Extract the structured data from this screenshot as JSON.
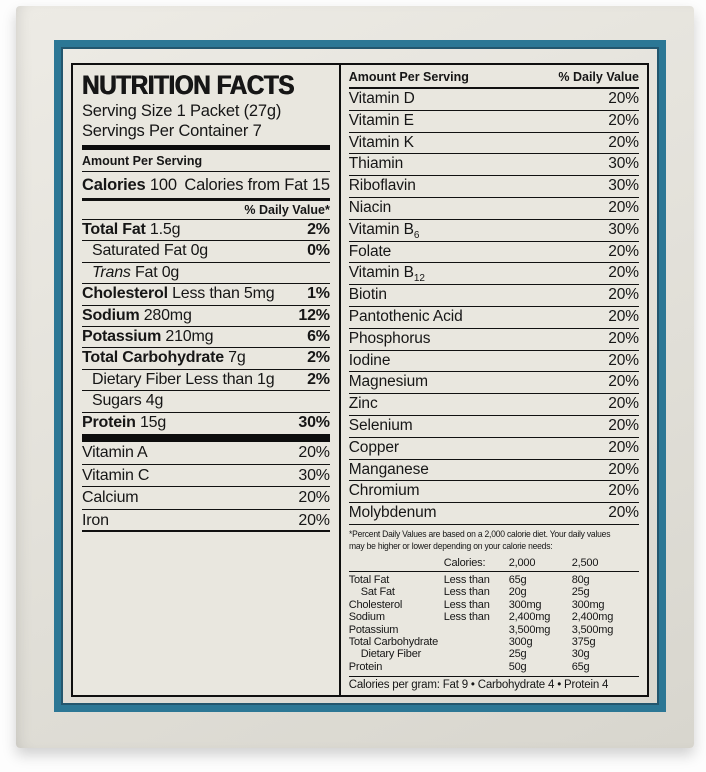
{
  "colors": {
    "teal_border": "#2c7795",
    "teal_inner_line": "#23566e",
    "label_background": "#e9e7df",
    "box_background": "#e0ded6",
    "text": "#161616"
  },
  "nutrition_label": {
    "title": "NUTRITION FACTS",
    "serving_size": "Serving Size 1 Packet (27g)",
    "servings_per_container": "Servings Per Container 7",
    "amount_per_serving": "Amount Per Serving",
    "calories_label": "Calories",
    "calories_value": "100",
    "calories_from_fat": "Calories from Fat 15",
    "daily_value_header": "% Daily Value*",
    "nutrients": [
      {
        "name": "Total Fat",
        "style": "bold",
        "amount": "1.5g",
        "dv": "2%"
      },
      {
        "name": "Saturated Fat",
        "style": "plain",
        "amount": "0g",
        "dv": "0%",
        "indent": 1
      },
      {
        "name": "Trans",
        "style": "italic",
        "amount": "Fat 0g",
        "dv": "",
        "indent": 1
      },
      {
        "name": "Cholesterol",
        "style": "bold",
        "amount": "Less than 5mg",
        "dv": "1%"
      },
      {
        "name": "Sodium",
        "style": "bold",
        "amount": "280mg",
        "dv": "12%"
      },
      {
        "name": "Potassium",
        "style": "bold",
        "amount": "210mg",
        "dv": "6%"
      },
      {
        "name": "Total Carbohydrate",
        "style": "bold",
        "amount": "7g",
        "dv": "2%"
      },
      {
        "name": "Dietary Fiber",
        "style": "plain",
        "amount": "Less than 1g",
        "dv": "2%",
        "indent": 1
      },
      {
        "name": "Sugars",
        "style": "plain",
        "amount": "4g",
        "dv": "",
        "indent": 1
      },
      {
        "name": "Protein",
        "style": "bold",
        "amount": "15g",
        "dv": "30%"
      }
    ],
    "vitamins_left": [
      {
        "name": "Vitamin A",
        "dv": "20%"
      },
      {
        "name": "Vitamin C",
        "dv": "30%"
      },
      {
        "name": "Calcium",
        "dv": "20%"
      },
      {
        "name": "Iron",
        "dv": "20%"
      }
    ],
    "right_header_left": "Amount Per Serving",
    "right_header_right": "% Daily Value",
    "micronutrients": [
      {
        "name": "Vitamin D",
        "dv": "20%"
      },
      {
        "name": "Vitamin E",
        "dv": "20%"
      },
      {
        "name": "Vitamin K",
        "dv": "20%"
      },
      {
        "name": "Thiamin",
        "dv": "30%"
      },
      {
        "name": "Riboflavin",
        "dv": "30%"
      },
      {
        "name": "Niacin",
        "dv": "20%"
      },
      {
        "name": "Vitamin B",
        "sub": "6",
        "dv": "30%"
      },
      {
        "name": "Folate",
        "dv": "20%"
      },
      {
        "name": "Vitamin B",
        "sub": "12",
        "dv": "20%"
      },
      {
        "name": "Biotin",
        "dv": "20%"
      },
      {
        "name": "Pantothenic Acid",
        "dv": "20%"
      },
      {
        "name": "Phosphorus",
        "dv": "20%"
      },
      {
        "name": "Iodine",
        "dv": "20%"
      },
      {
        "name": "Magnesium",
        "dv": "20%"
      },
      {
        "name": "Zinc",
        "dv": "20%"
      },
      {
        "name": "Selenium",
        "dv": "20%"
      },
      {
        "name": "Copper",
        "dv": "20%"
      },
      {
        "name": "Manganese",
        "dv": "20%"
      },
      {
        "name": "Chromium",
        "dv": "20%"
      },
      {
        "name": "Molybdenum",
        "dv": "20%"
      }
    ],
    "footnote_lines": [
      "*Percent Daily Values are based on a 2,000 calorie diet. Your daily values",
      "may be higher or lower depending on your calorie needs:"
    ],
    "dv_table": {
      "calories_header": "Calories:",
      "col_2000": "2,000",
      "col_2500": "2,500",
      "rows": [
        {
          "name": "Total Fat",
          "qual": "Less than",
          "v2000": "65g",
          "v2500": "80g"
        },
        {
          "name": "Sat Fat",
          "qual": "Less than",
          "v2000": "20g",
          "v2500": "25g",
          "indent": 1
        },
        {
          "name": "Cholesterol",
          "qual": "Less than",
          "v2000": "300mg",
          "v2500": "300mg"
        },
        {
          "name": "Sodium",
          "qual": "Less than",
          "v2000": "2,400mg",
          "v2500": "2,400mg"
        },
        {
          "name": "Potassium",
          "qual": "",
          "v2000": "3,500mg",
          "v2500": "3,500mg"
        },
        {
          "name": "Total Carbohydrate",
          "qual": "",
          "v2000": "300g",
          "v2500": "375g"
        },
        {
          "name": "Dietary Fiber",
          "qual": "",
          "v2000": "25g",
          "v2500": "30g",
          "indent": 1
        },
        {
          "name": "Protein",
          "qual": "",
          "v2000": "50g",
          "v2500": "65g"
        }
      ]
    },
    "calories_per_gram": "Calories per gram: Fat 9 • Carbohydrate 4 • Protein 4"
  }
}
